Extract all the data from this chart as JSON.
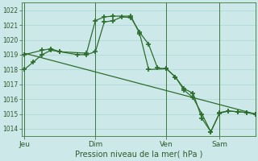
{
  "background_color": "#cce8e8",
  "grid_color": "#aad4d4",
  "line_color": "#2d6e2d",
  "title": "Pression niveau de la mer( hPa )",
  "ylim": [
    1013.5,
    1022.5
  ],
  "yticks": [
    1014,
    1015,
    1016,
    1017,
    1018,
    1019,
    1020,
    1021,
    1022
  ],
  "day_labels": [
    "Jeu",
    "Dim",
    "Ven",
    "Sam"
  ],
  "day_positions": [
    0.0,
    8.0,
    16.0,
    22.0
  ],
  "xlim": [
    -0.3,
    26.0
  ],
  "series1_x": [
    0,
    1,
    2,
    3,
    4,
    6,
    7,
    8,
    9,
    10,
    11,
    12,
    13,
    14,
    15,
    16,
    17,
    18,
    19,
    20,
    21,
    22,
    23,
    24,
    25,
    26
  ],
  "series1_y": [
    1018.0,
    1018.5,
    1019.0,
    1019.3,
    1019.2,
    1019.0,
    1019.0,
    1019.2,
    1021.2,
    1021.3,
    1021.55,
    1021.5,
    1020.5,
    1019.7,
    1018.1,
    1018.05,
    1017.5,
    1016.7,
    1016.4,
    1014.7,
    1013.8,
    1015.1,
    1015.2,
    1015.15,
    1015.1,
    1015.0
  ],
  "series2_x": [
    0,
    2,
    3,
    4,
    7,
    8,
    9,
    10,
    12,
    13,
    14,
    16,
    17,
    18,
    19,
    20,
    21,
    22,
    23,
    24,
    25,
    26
  ],
  "series2_y": [
    1019.0,
    1019.3,
    1019.4,
    1019.2,
    1019.1,
    1021.3,
    1021.55,
    1021.6,
    1021.6,
    1020.4,
    1018.0,
    1018.05,
    1017.5,
    1016.6,
    1016.1,
    1015.0,
    1013.8,
    1015.05,
    1015.2,
    1015.15,
    1015.1,
    1015.0
  ],
  "trend_x": [
    0,
    26
  ],
  "trend_y": [
    1019.1,
    1015.0
  ]
}
